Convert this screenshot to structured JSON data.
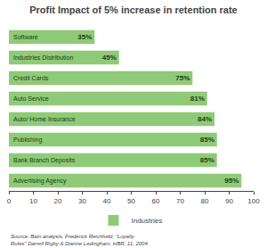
{
  "chart_data": {
    "type": "bar",
    "orientation": "horizontal",
    "title": "Profit Impact of 5% increase in retention rate",
    "categories": [
      "Software",
      "Industries Distribution",
      "Credit Cards",
      "Auto Service",
      "Auto/ Home Insurance",
      "Publishing",
      "Bank Branch Deposits",
      "Advertising Agency"
    ],
    "series": [
      {
        "name": "Industries",
        "color": "#8fca78",
        "values": [
          35,
          45,
          75,
          81,
          84,
          85,
          85,
          95
        ],
        "value_labels": [
          "35%",
          "45%",
          "75%",
          "81%",
          "84%",
          "85%",
          "85%",
          "95%"
        ]
      }
    ],
    "xlim": [
      0,
      100
    ],
    "xticks": [
      0,
      10,
      20,
      30,
      40,
      50,
      60,
      70,
      80,
      90,
      100
    ],
    "grid": false,
    "legend": "bottom",
    "data_labels": true,
    "tick_labels": "x",
    "annotations": [
      "Source: Bain analysis, Frederick Reichheld, \"Loyalty Rules\" Darrell Rigby & Dianne Ledingham, HBR, 11, 2004."
    ]
  }
}
